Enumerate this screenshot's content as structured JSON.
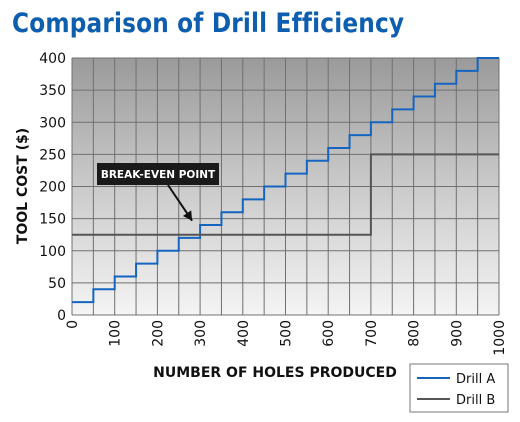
{
  "title": "Comparison of Drill Efficiency",
  "chart_data": {
    "type": "line",
    "title": "Comparison of Drill Efficiency",
    "xlabel": "NUMBER OF HOLES PRODUCED",
    "ylabel": "TOOL COST ($)",
    "xlim": [
      0,
      1000
    ],
    "ylim": [
      0,
      400
    ],
    "x_ticks": [
      0,
      100,
      200,
      300,
      400,
      500,
      600,
      700,
      800,
      900,
      1000
    ],
    "y_ticks": [
      0,
      50,
      100,
      150,
      200,
      250,
      300,
      350,
      400
    ],
    "grid": true,
    "legend_position": "bottom-right",
    "series": [
      {
        "name": "Drill A",
        "color": "#1565c0",
        "step": true,
        "points": [
          [
            0,
            20
          ],
          [
            50,
            20
          ],
          [
            50,
            40
          ],
          [
            100,
            40
          ],
          [
            100,
            60
          ],
          [
            150,
            60
          ],
          [
            150,
            80
          ],
          [
            200,
            80
          ],
          [
            200,
            100
          ],
          [
            250,
            100
          ],
          [
            250,
            120
          ],
          [
            300,
            120
          ],
          [
            300,
            140
          ],
          [
            350,
            140
          ],
          [
            350,
            160
          ],
          [
            400,
            160
          ],
          [
            400,
            180
          ],
          [
            450,
            180
          ],
          [
            450,
            200
          ],
          [
            500,
            200
          ],
          [
            500,
            220
          ],
          [
            550,
            220
          ],
          [
            550,
            240
          ],
          [
            600,
            240
          ],
          [
            600,
            260
          ],
          [
            650,
            260
          ],
          [
            650,
            280
          ],
          [
            700,
            280
          ],
          [
            700,
            300
          ],
          [
            750,
            300
          ],
          [
            750,
            320
          ],
          [
            800,
            320
          ],
          [
            800,
            340
          ],
          [
            850,
            340
          ],
          [
            850,
            360
          ],
          [
            900,
            360
          ],
          [
            900,
            380
          ],
          [
            950,
            380
          ],
          [
            950,
            400
          ],
          [
            1000,
            400
          ]
        ]
      },
      {
        "name": "Drill B",
        "color": "#555555",
        "step": true,
        "points": [
          [
            0,
            125
          ],
          [
            700,
            125
          ],
          [
            700,
            250
          ],
          [
            1000,
            250
          ]
        ]
      }
    ],
    "annotations": [
      {
        "text": "BREAK-EVEN POINT",
        "target": [
          300,
          125
        ]
      }
    ]
  }
}
